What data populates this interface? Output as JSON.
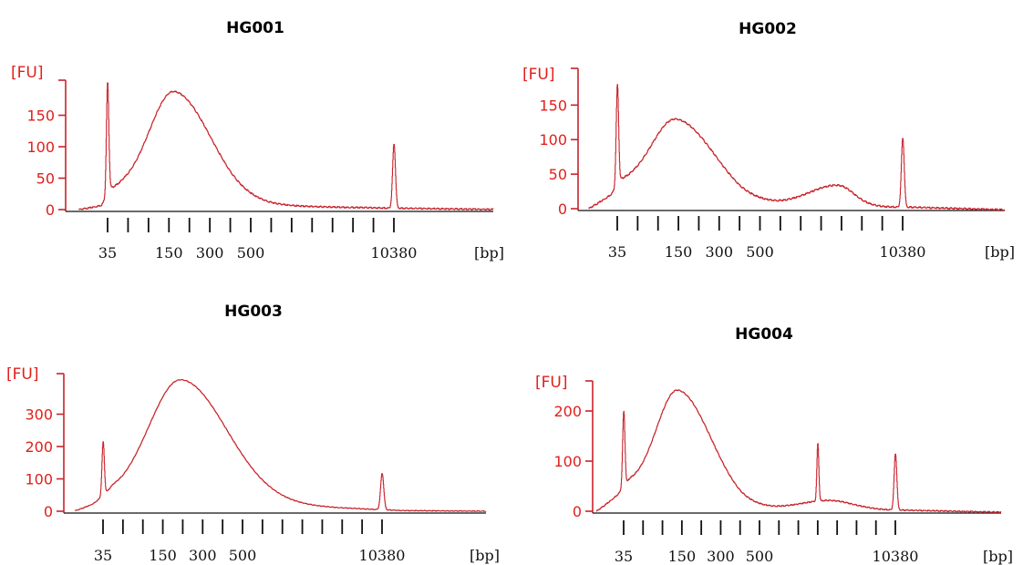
{
  "chart_data": [
    {
      "type": "line",
      "title": "HG001",
      "ylabel": "[FU]",
      "xlabel": "[bp]",
      "ylim": [
        0,
        200
      ],
      "yticks": [
        "0",
        "50",
        "100",
        "150"
      ],
      "ytick_values": [
        0,
        50,
        100,
        150
      ],
      "xtick_labels": [
        "35",
        "150",
        "300",
        "500",
        "10380"
      ],
      "xtick_label_positions": [
        0,
        3,
        5,
        7,
        14
      ],
      "minor_tick_positions": [
        1,
        2,
        4,
        6,
        8,
        9,
        10,
        11,
        12,
        13
      ],
      "x_range": [
        -1.4,
        19.5
      ],
      "grid": false,
      "series": [
        {
          "peaks": [
            {
              "type": "spike",
              "x": 0.0,
              "height": 140,
              "width": 0.06
            },
            {
              "type": "spike",
              "x": -0.02,
              "height": 40,
              "width": 0.05
            },
            {
              "type": "broad",
              "x": 3.25,
              "height": 168,
              "sigma_left": 1.2,
              "sigma_right": 1.8
            },
            {
              "type": "spike",
              "x": 14.0,
              "height": 102,
              "width": 0.07
            }
          ],
          "baseline": [
            [
              -1.4,
              0
            ],
            [
              -0.3,
              5
            ],
            [
              0.15,
              28
            ],
            [
              0.8,
              30
            ],
            [
              6.0,
              8
            ],
            [
              11.0,
              4
            ],
            [
              14.5,
              2
            ],
            [
              19.5,
              0
            ]
          ]
        }
      ]
    },
    {
      "type": "line",
      "title": "HG002",
      "ylabel": "[FU]",
      "xlabel": "[bp]",
      "ylim": [
        0,
        190
      ],
      "yticks": [
        "0",
        "50",
        "100",
        "150"
      ],
      "ytick_values": [
        0,
        50,
        100,
        150
      ],
      "xtick_labels": [
        "35",
        "150",
        "300",
        "500",
        "10380"
      ],
      "xtick_label_positions": [
        0,
        3,
        5,
        7,
        14
      ],
      "minor_tick_positions": [
        1,
        2,
        4,
        6,
        8,
        9,
        10,
        11,
        12,
        13
      ],
      "x_range": [
        -1.4,
        19.5
      ],
      "grid": false,
      "series": [
        {
          "peaks": [
            {
              "type": "spike",
              "x": 0.0,
              "height": 145,
              "width": 0.06
            },
            {
              "type": "broad",
              "x": 2.9,
              "height": 108,
              "sigma_left": 1.2,
              "sigma_right": 1.9
            },
            {
              "type": "broad",
              "x": 10.8,
              "height": 30,
              "sigma_left": 1.4,
              "sigma_right": 0.8
            },
            {
              "type": "spike",
              "x": 14.0,
              "height": 100,
              "width": 0.07
            }
          ],
          "baseline": [
            [
              -1.4,
              0
            ],
            [
              -0.3,
              18
            ],
            [
              0.2,
              35
            ],
            [
              0.8,
              33
            ],
            [
              6.0,
              5
            ],
            [
              9.0,
              5
            ],
            [
              12.5,
              3
            ],
            [
              14.5,
              2
            ],
            [
              19.5,
              -2
            ]
          ]
        }
      ]
    },
    {
      "type": "line",
      "title": "HG003",
      "ylabel": "[FU]",
      "xlabel": "[bp]",
      "ylim": [
        0,
        400
      ],
      "yticks": [
        "0",
        "100",
        "200",
        "300"
      ],
      "ytick_values": [
        0,
        100,
        200,
        300
      ],
      "xtick_labels": [
        "35",
        "150",
        "300",
        "500",
        "10380"
      ],
      "xtick_label_positions": [
        0,
        3,
        5,
        7,
        14
      ],
      "minor_tick_positions": [
        1,
        2,
        4,
        6,
        8,
        9,
        10,
        11,
        12,
        13
      ],
      "x_range": [
        -1.4,
        19.5
      ],
      "grid": false,
      "series": [
        {
          "peaks": [
            {
              "type": "spike",
              "x": 0.0,
              "height": 165,
              "width": 0.06
            },
            {
              "type": "broad",
              "x": 3.9,
              "height": 375,
              "sigma_left": 1.6,
              "sigma_right": 2.3
            },
            {
              "type": "spike",
              "x": 14.0,
              "height": 112,
              "width": 0.08
            }
          ],
          "baseline": [
            [
              -1.4,
              0
            ],
            [
              -0.5,
              15
            ],
            [
              0.5,
              45
            ],
            [
              1.0,
              40
            ],
            [
              7.0,
              22
            ],
            [
              10.0,
              15
            ],
            [
              13.5,
              6
            ],
            [
              15.0,
              2
            ],
            [
              19.5,
              0
            ]
          ]
        }
      ]
    },
    {
      "type": "line",
      "title": "HG004",
      "ylabel": "[FU]",
      "xlabel": "[bp]",
      "ylim": [
        0,
        240
      ],
      "yticks": [
        "0",
        "100",
        "200"
      ],
      "ytick_values": [
        0,
        100,
        200
      ],
      "xtick_labels": [
        "35",
        "150",
        "300",
        "500",
        "10380"
      ],
      "xtick_label_positions": [
        0,
        3,
        5,
        7,
        14
      ],
      "minor_tick_positions": [
        1,
        2,
        4,
        6,
        8,
        9,
        10,
        11,
        12,
        13
      ],
      "x_range": [
        -1.4,
        19.5
      ],
      "grid": false,
      "series": [
        {
          "peaks": [
            {
              "type": "spike",
              "x": 0.0,
              "height": 150,
              "width": 0.06
            },
            {
              "type": "broad",
              "x": 2.8,
              "height": 212,
              "sigma_left": 1.1,
              "sigma_right": 1.7
            },
            {
              "type": "spike",
              "x": 10.0,
              "height": 115,
              "width": 0.05
            },
            {
              "type": "broad",
              "x": 10.6,
              "height": 18,
              "sigma_left": 1.5,
              "sigma_right": 1.2
            },
            {
              "type": "spike",
              "x": 14.0,
              "height": 112,
              "width": 0.07
            }
          ],
          "baseline": [
            [
              -1.4,
              0
            ],
            [
              -0.3,
              30
            ],
            [
              0.3,
              50
            ],
            [
              0.8,
              45
            ],
            [
              6.0,
              5
            ],
            [
              9.0,
              4
            ],
            [
              12.5,
              3
            ],
            [
              14.5,
              2
            ],
            [
              19.5,
              -2
            ]
          ]
        }
      ]
    }
  ]
}
